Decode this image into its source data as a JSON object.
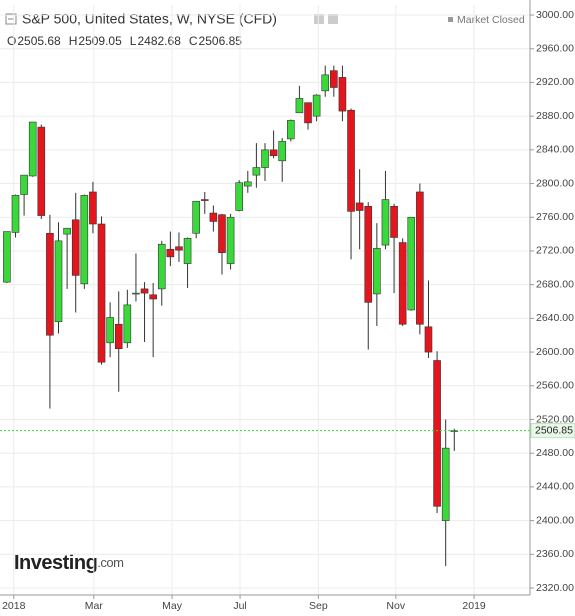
{
  "chart_data": {
    "type": "candlestick",
    "title": "S&P 500, United States, W, NYSE (CFD)",
    "status": "Market Closed",
    "legend": [
      {
        "label": "O",
        "value": 2505.68
      },
      {
        "label": "H",
        "value": 2509.05
      },
      {
        "label": "L",
        "value": 2482.68
      },
      {
        "label": "C",
        "value": 2506.85
      }
    ],
    "logo": {
      "name": "Investing",
      "suffix": ".com"
    },
    "up_color": "#3ad83a",
    "down_color": "#e3161d",
    "open": [
      2683,
      2742,
      2787,
      2809,
      2867,
      2741,
      2636,
      2740,
      2757,
      2681,
      2790,
      2752,
      2611,
      2633,
      2611,
      2670,
      2675,
      2668,
      2675,
      2722,
      2725,
      2705,
      2741,
      2781,
      2765,
      2763,
      2705,
      2768,
      2797,
      2810,
      2819,
      2840,
      2827,
      2853,
      2884,
      2896,
      2880,
      2910,
      2934,
      2926,
      2887,
      2777,
      2773,
      2669,
      2727,
      2773,
      2730,
      2650,
      2790,
      2630,
      2590,
      2400,
      2505.68
    ],
    "high": [
      2743,
      2787,
      2810,
      2873,
      2870,
      2763,
      2754,
      2747,
      2789,
      2787,
      2802,
      2761,
      2659,
      2672,
      2674,
      2717,
      2683,
      2682,
      2732,
      2743,
      2742,
      2736,
      2779,
      2790,
      2774,
      2764,
      2764,
      2804,
      2815,
      2848,
      2848,
      2863,
      2854,
      2876,
      2916,
      2895,
      2906,
      2940,
      2940,
      2940,
      2889,
      2817,
      2778,
      2753,
      2815,
      2776,
      2735,
      2760,
      2800,
      2685,
      2601,
      2520,
      2509.05
    ],
    "low": [
      2682,
      2736,
      2762,
      2808,
      2758,
      2533,
      2622,
      2675,
      2647,
      2675,
      2741,
      2585,
      2594,
      2553,
      2605,
      2660,
      2612,
      2594,
      2655,
      2702,
      2707,
      2676,
      2735,
      2764,
      2743,
      2692,
      2698,
      2767,
      2789,
      2795,
      2803,
      2830,
      2802,
      2850,
      2884,
      2864,
      2874,
      2903,
      2903,
      2874,
      2710,
      2722,
      2603,
      2631,
      2722,
      2670,
      2631,
      2649,
      2621,
      2593,
      2409,
      2346,
      2482.68
    ],
    "close": [
      2743,
      2786,
      2810,
      2873,
      2762,
      2620,
      2732,
      2747,
      2691,
      2786,
      2752,
      2588,
      2641,
      2604,
      2656,
      2670,
      2670,
      2663,
      2728,
      2713,
      2721,
      2735,
      2779,
      2780,
      2755,
      2718,
      2760,
      2801,
      2802,
      2819,
      2840,
      2833,
      2850,
      2875,
      2901,
      2872,
      2905,
      2929,
      2914,
      2886,
      2767,
      2768,
      2659,
      2723,
      2781,
      2736,
      2633,
      2760,
      2633,
      2600,
      2417,
      2486,
      2506.85
    ],
    "last_price": 2506.85,
    "ylim": [
      2311.7,
      3011.9
    ],
    "yticks": [
      {
        "value": 2320,
        "label": "2320.00"
      },
      {
        "value": 2360,
        "label": "2360.00"
      },
      {
        "value": 2400,
        "label": "2400.00"
      },
      {
        "value": 2440,
        "label": "2440.00"
      },
      {
        "value": 2480,
        "label": "2480.00"
      },
      {
        "value": 2520,
        "label": "2520.00"
      },
      {
        "value": 2560,
        "label": "2560.00"
      },
      {
        "value": 2600,
        "label": "2600.00"
      },
      {
        "value": 2640,
        "label": "2640.00"
      },
      {
        "value": 2680,
        "label": "2680.00"
      },
      {
        "value": 2720,
        "label": "2720.00"
      },
      {
        "value": 2760,
        "label": "2760.00"
      },
      {
        "value": 2800,
        "label": "2800.00"
      },
      {
        "value": 2840,
        "label": "2840.00"
      },
      {
        "value": 2880,
        "label": "2880.00"
      },
      {
        "value": 2920,
        "label": "2920.00"
      },
      {
        "value": 2960,
        "label": "2960.00"
      },
      {
        "value": 3000,
        "label": "3000.00"
      }
    ],
    "xlim": [
      -0.8,
      60.8
    ],
    "xticks": [
      {
        "value": 0.8,
        "label": "2018"
      },
      {
        "value": 10.1,
        "label": "Mar"
      },
      {
        "value": 19.2,
        "label": "May"
      },
      {
        "value": 27.1,
        "label": "Jul"
      },
      {
        "value": 36.2,
        "label": "Sep"
      },
      {
        "value": 45.2,
        "label": "Nov"
      },
      {
        "value": 54.3,
        "label": "2019"
      }
    ],
    "grid": true
  }
}
